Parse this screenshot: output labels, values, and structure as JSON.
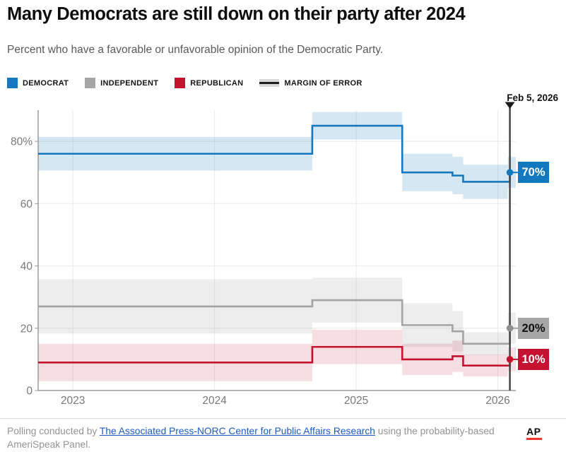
{
  "header": {
    "title": "Many Democrats are still down on their party after 2024",
    "subtitle": "Percent who have a favorable or unfavorable opinion of the Democratic Party."
  },
  "legend": [
    {
      "label": "DEMOCRAT",
      "type": "square",
      "color": "#1478be"
    },
    {
      "label": "INDEPENDENT",
      "type": "square",
      "color": "#a6a6a6"
    },
    {
      "label": "REPUBLICAN",
      "type": "square",
      "color": "#c51230"
    },
    {
      "label": "MARGIN OF ERROR",
      "type": "moe",
      "color": "#1d1d1d"
    }
  ],
  "chart_data": {
    "type": "line",
    "variant": "step-after with margin-of-error bands",
    "x_domain": [
      2022.755,
      2026.127
    ],
    "y_domain": [
      0,
      90
    ],
    "grid": true,
    "x_ticks": [
      {
        "value": 2023,
        "label": "2023"
      },
      {
        "value": 2024,
        "label": "2024"
      },
      {
        "value": 2025,
        "label": "2025"
      },
      {
        "value": 2026,
        "label": "2026"
      }
    ],
    "y_ticks": [
      {
        "value": 0,
        "label": "0"
      },
      {
        "value": 20,
        "label": "20"
      },
      {
        "value": 40,
        "label": "40"
      },
      {
        "value": 60,
        "label": "60"
      },
      {
        "value": 80,
        "label": "80%"
      }
    ],
    "poll_x": [
      2022.755,
      2024.69,
      2025.325,
      2025.68,
      2025.755,
      2026.07
    ],
    "marker": {
      "x": 2026.085,
      "label": "Feb 5, 2026",
      "line_color": "#444444"
    },
    "series": [
      {
        "name": "Independent",
        "line_color": "#a3a3a3",
        "band_color": "#9a9a9a",
        "band_opacity": 0.18,
        "dot_color": "#8f8f8f",
        "values": [
          27,
          29,
          21,
          19,
          15,
          20
        ],
        "moe": [
          8.7,
          7.2,
          7,
          6.5,
          3.7,
          5
        ],
        "end_label": "20%",
        "end_label_bg": "#a6a6a6",
        "end_label_text_color": "#111111"
      },
      {
        "name": "Republican",
        "line_color": "#c51230",
        "band_color": "#c51230",
        "band_opacity": 0.14,
        "dot_color": "#c51230",
        "values": [
          9,
          14,
          10,
          11,
          8,
          10
        ],
        "moe": [
          6,
          5.5,
          5,
          5,
          3.5,
          3.8
        ],
        "end_label": "10%",
        "end_label_bg": "#c51230",
        "end_label_text_color": "#ffffff"
      },
      {
        "name": "Democrat",
        "line_color": "#1478be",
        "band_color": "#1478be",
        "band_opacity": 0.18,
        "dot_color": "#1478be",
        "values": [
          76,
          85,
          70,
          69,
          67,
          70
        ],
        "moe": [
          5.4,
          4.4,
          6,
          6,
          5.5,
          5
        ],
        "end_label": "70%",
        "end_label_bg": "#1478be",
        "end_label_text_color": "#ffffff"
      }
    ],
    "axis_color": "#9b9b9b",
    "grid_color": "#ececec",
    "tick_label_color": "#787878"
  },
  "footer": {
    "prefix": "Polling conducted by ",
    "link": "The Associated Press-NORC Center for Public Affairs Research",
    "suffix": " using the probability-based AmeriSpeak Panel.",
    "logo": "AP"
  }
}
